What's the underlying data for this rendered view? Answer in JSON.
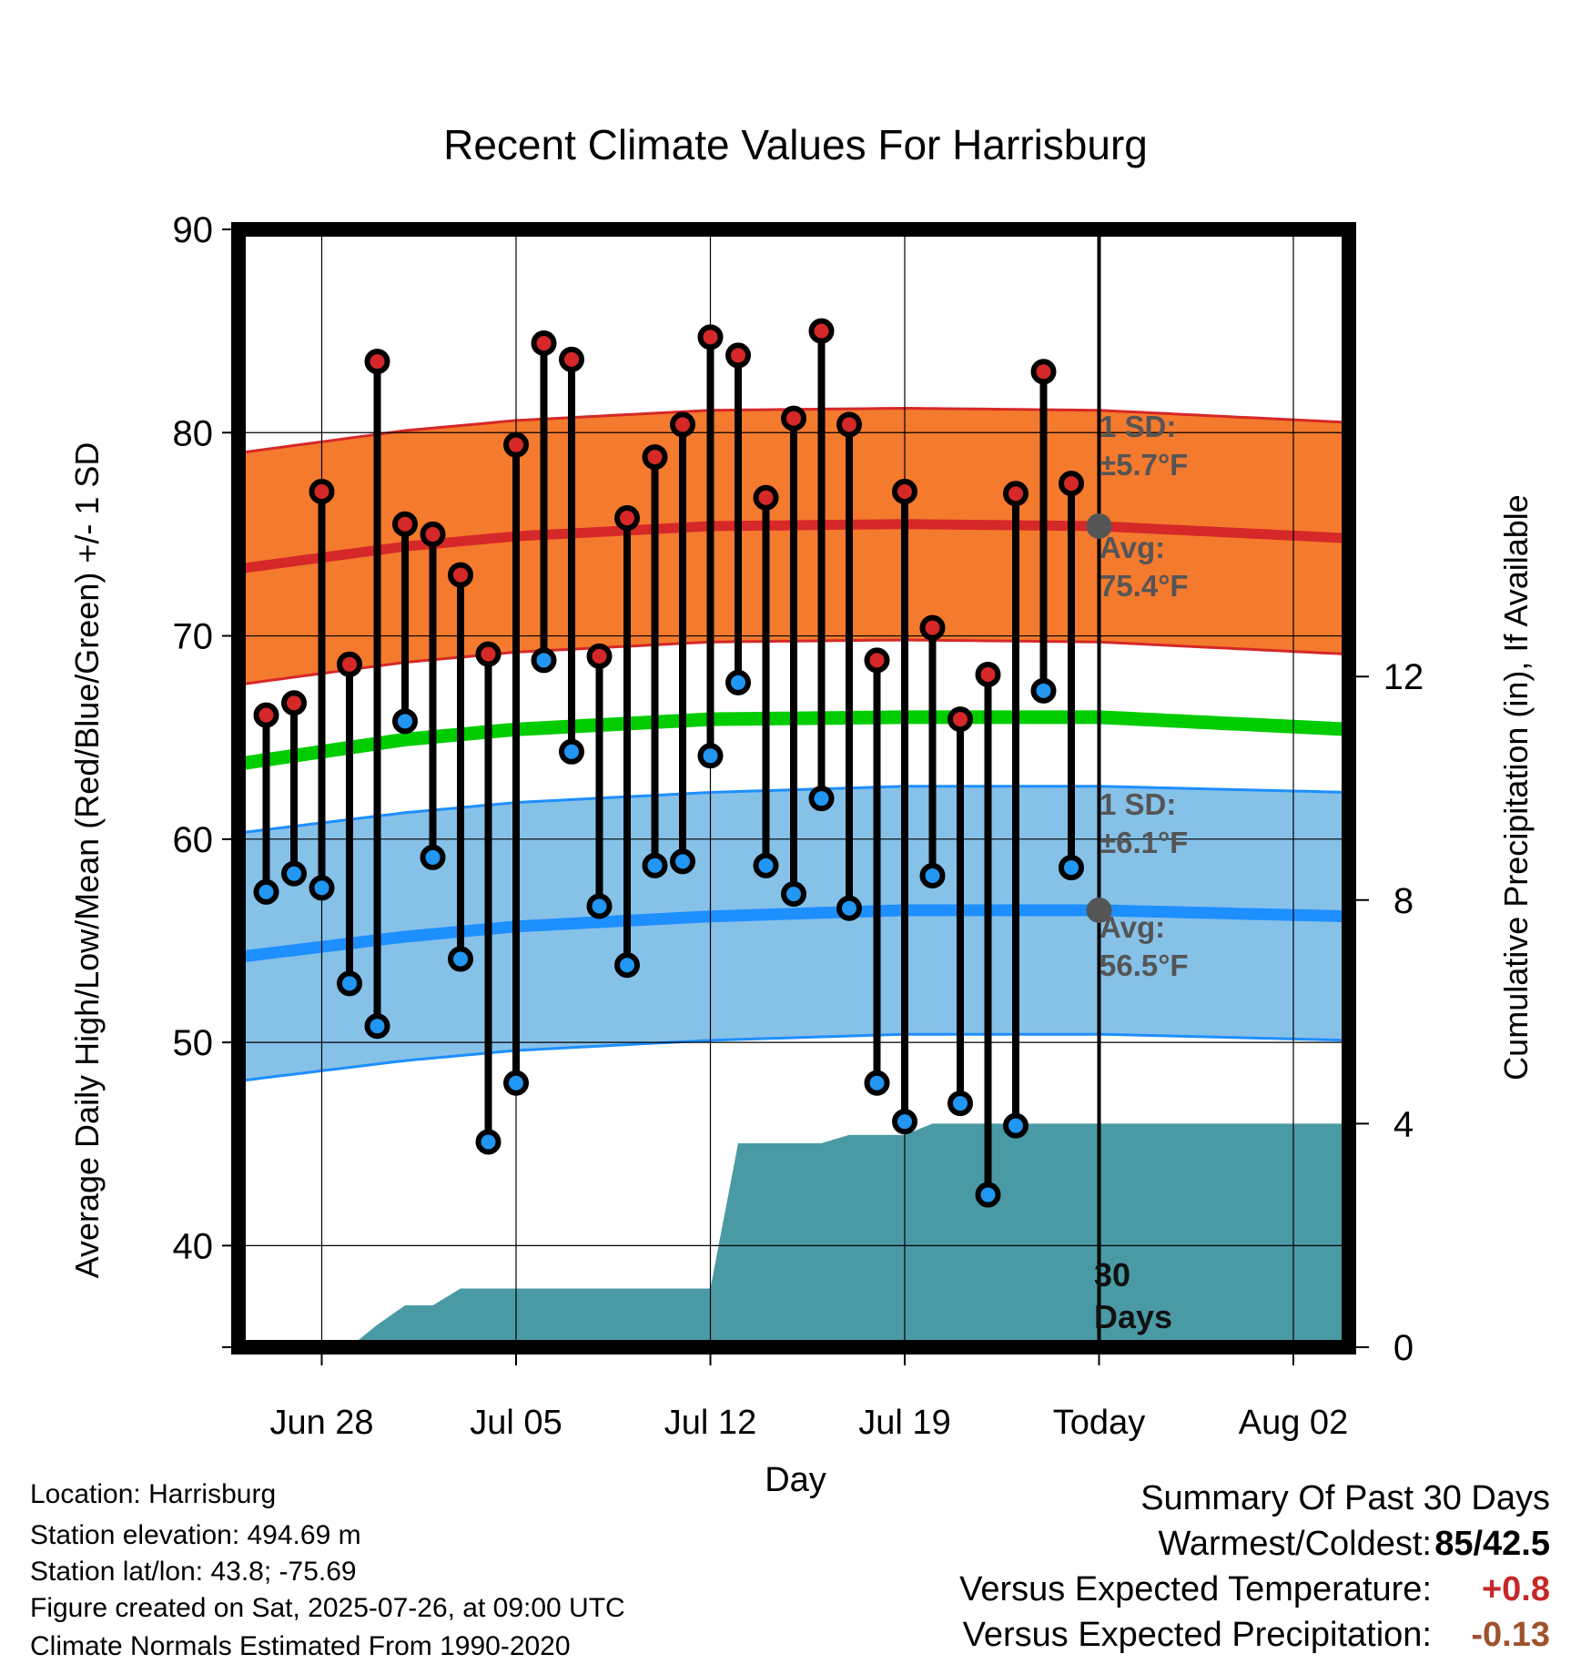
{
  "chart_data": {
    "type": "line",
    "title": "Recent Climate Values For Harrisburg",
    "xlabel": "Day",
    "ylabel": "Average Daily High/Low/Mean (Red/Blue/Green) +/- 1 SD",
    "y2label": "Cumulative Precipitation (in), If Available",
    "ylim": [
      35,
      90
    ],
    "y2lim": [
      0,
      20
    ],
    "yticks": [
      40,
      50,
      60,
      70,
      80,
      90
    ],
    "y2ticks": [
      0,
      4,
      8,
      12
    ],
    "xticks": [
      "Jun 28",
      "Jul 05",
      "Jul 12",
      "Jul 19",
      "Today",
      "Aug 02"
    ],
    "xlim": [
      "2025-06-25",
      "2025-08-04"
    ],
    "today": "2025-07-26",
    "grid": true,
    "colors": {
      "high_band": "#f47a2e",
      "high_line": "#d62828",
      "low_band": "#86c1e8",
      "low_line": "#1e8fff",
      "mean_line": "#00cc00",
      "precip": "#4a9aa5",
      "marker_high": "#d62828",
      "marker_low": "#2196f3",
      "annotation": "#555555"
    },
    "normals": {
      "dates": [
        "2025-06-25",
        "2025-07-01",
        "2025-07-05",
        "2025-07-12",
        "2025-07-19",
        "2025-07-26",
        "2025-08-04"
      ],
      "high_avg": [
        73.3,
        74.4,
        74.9,
        75.4,
        75.5,
        75.4,
        74.8
      ],
      "high_sd": 5.7,
      "low_avg": [
        54.2,
        55.2,
        55.7,
        56.2,
        56.5,
        56.5,
        56.2
      ],
      "low_sd": 6.1,
      "mean_avg": [
        63.7,
        64.9,
        65.4,
        65.9,
        66.0,
        66.0,
        65.4
      ]
    },
    "observed": {
      "dates": [
        "2025-06-26",
        "2025-06-27",
        "2025-06-28",
        "2025-06-29",
        "2025-06-30",
        "2025-07-01",
        "2025-07-02",
        "2025-07-03",
        "2025-07-04",
        "2025-07-05",
        "2025-07-06",
        "2025-07-07",
        "2025-07-08",
        "2025-07-09",
        "2025-07-10",
        "2025-07-11",
        "2025-07-12",
        "2025-07-13",
        "2025-07-14",
        "2025-07-15",
        "2025-07-16",
        "2025-07-17",
        "2025-07-18",
        "2025-07-19",
        "2025-07-20",
        "2025-07-21",
        "2025-07-22",
        "2025-07-23",
        "2025-07-24",
        "2025-07-25"
      ],
      "high": [
        66.1,
        66.7,
        77.1,
        68.6,
        83.5,
        75.5,
        75.0,
        73.0,
        69.1,
        79.4,
        84.4,
        83.6,
        69.0,
        75.8,
        78.8,
        80.4,
        84.7,
        83.8,
        76.8,
        80.7,
        85.0,
        80.4,
        68.8,
        77.1,
        70.4,
        65.9,
        68.1,
        77.0,
        83.0,
        77.5
      ],
      "low": [
        57.4,
        58.3,
        57.6,
        52.9,
        50.8,
        65.8,
        59.1,
        54.1,
        45.1,
        48.0,
        68.8,
        64.3,
        56.7,
        53.8,
        58.7,
        58.9,
        64.1,
        67.7,
        58.7,
        57.3,
        62.0,
        56.6,
        48.0,
        46.1,
        58.2,
        47.0,
        42.5,
        45.9,
        67.3,
        58.6
      ]
    },
    "precipitation": {
      "dates": [
        "2025-06-29",
        "2025-06-30",
        "2025-07-01",
        "2025-07-02",
        "2025-07-03",
        "2025-07-12",
        "2025-07-13",
        "2025-07-16",
        "2025-07-17",
        "2025-07-19",
        "2025-07-20",
        "2025-08-04"
      ],
      "cumulative": [
        0.0,
        0.4,
        0.75,
        0.75,
        1.05,
        1.05,
        3.65,
        3.65,
        3.8,
        3.8,
        4.0,
        4.0
      ]
    },
    "annotations": {
      "high_sd_label": "1 SD:",
      "high_sd_value": "±5.7°F",
      "high_avg_label": "Avg:",
      "high_avg_value": "75.4°F",
      "low_sd_label": "1 SD:",
      "low_sd_value": "±6.1°F",
      "low_avg_label": "Avg:",
      "low_avg_value": "56.5°F",
      "days_number": "30",
      "days_word": "Days"
    }
  },
  "info": {
    "location": "Location: Harrisburg",
    "elevation": "Station elevation: 494.69 m",
    "latlon": "Station lat/lon: 43.8; -75.69",
    "created": "Figure created on Sat, 2025-07-26, at 09:00 UTC",
    "normals": "Climate Normals Estimated From 1990-2020"
  },
  "summary": {
    "title": "Summary Of Past 30 Days",
    "warmest_coldest_label": "Warmest/Coldest:",
    "warmest_coldest_value": "85/42.5",
    "temp_label": "Versus Expected Temperature:",
    "temp_value": "+0.8",
    "temp_color": "#c62828",
    "precip_label": "Versus Expected Precipitation:",
    "precip_value": "-0.13",
    "precip_color": "#a0522d"
  }
}
